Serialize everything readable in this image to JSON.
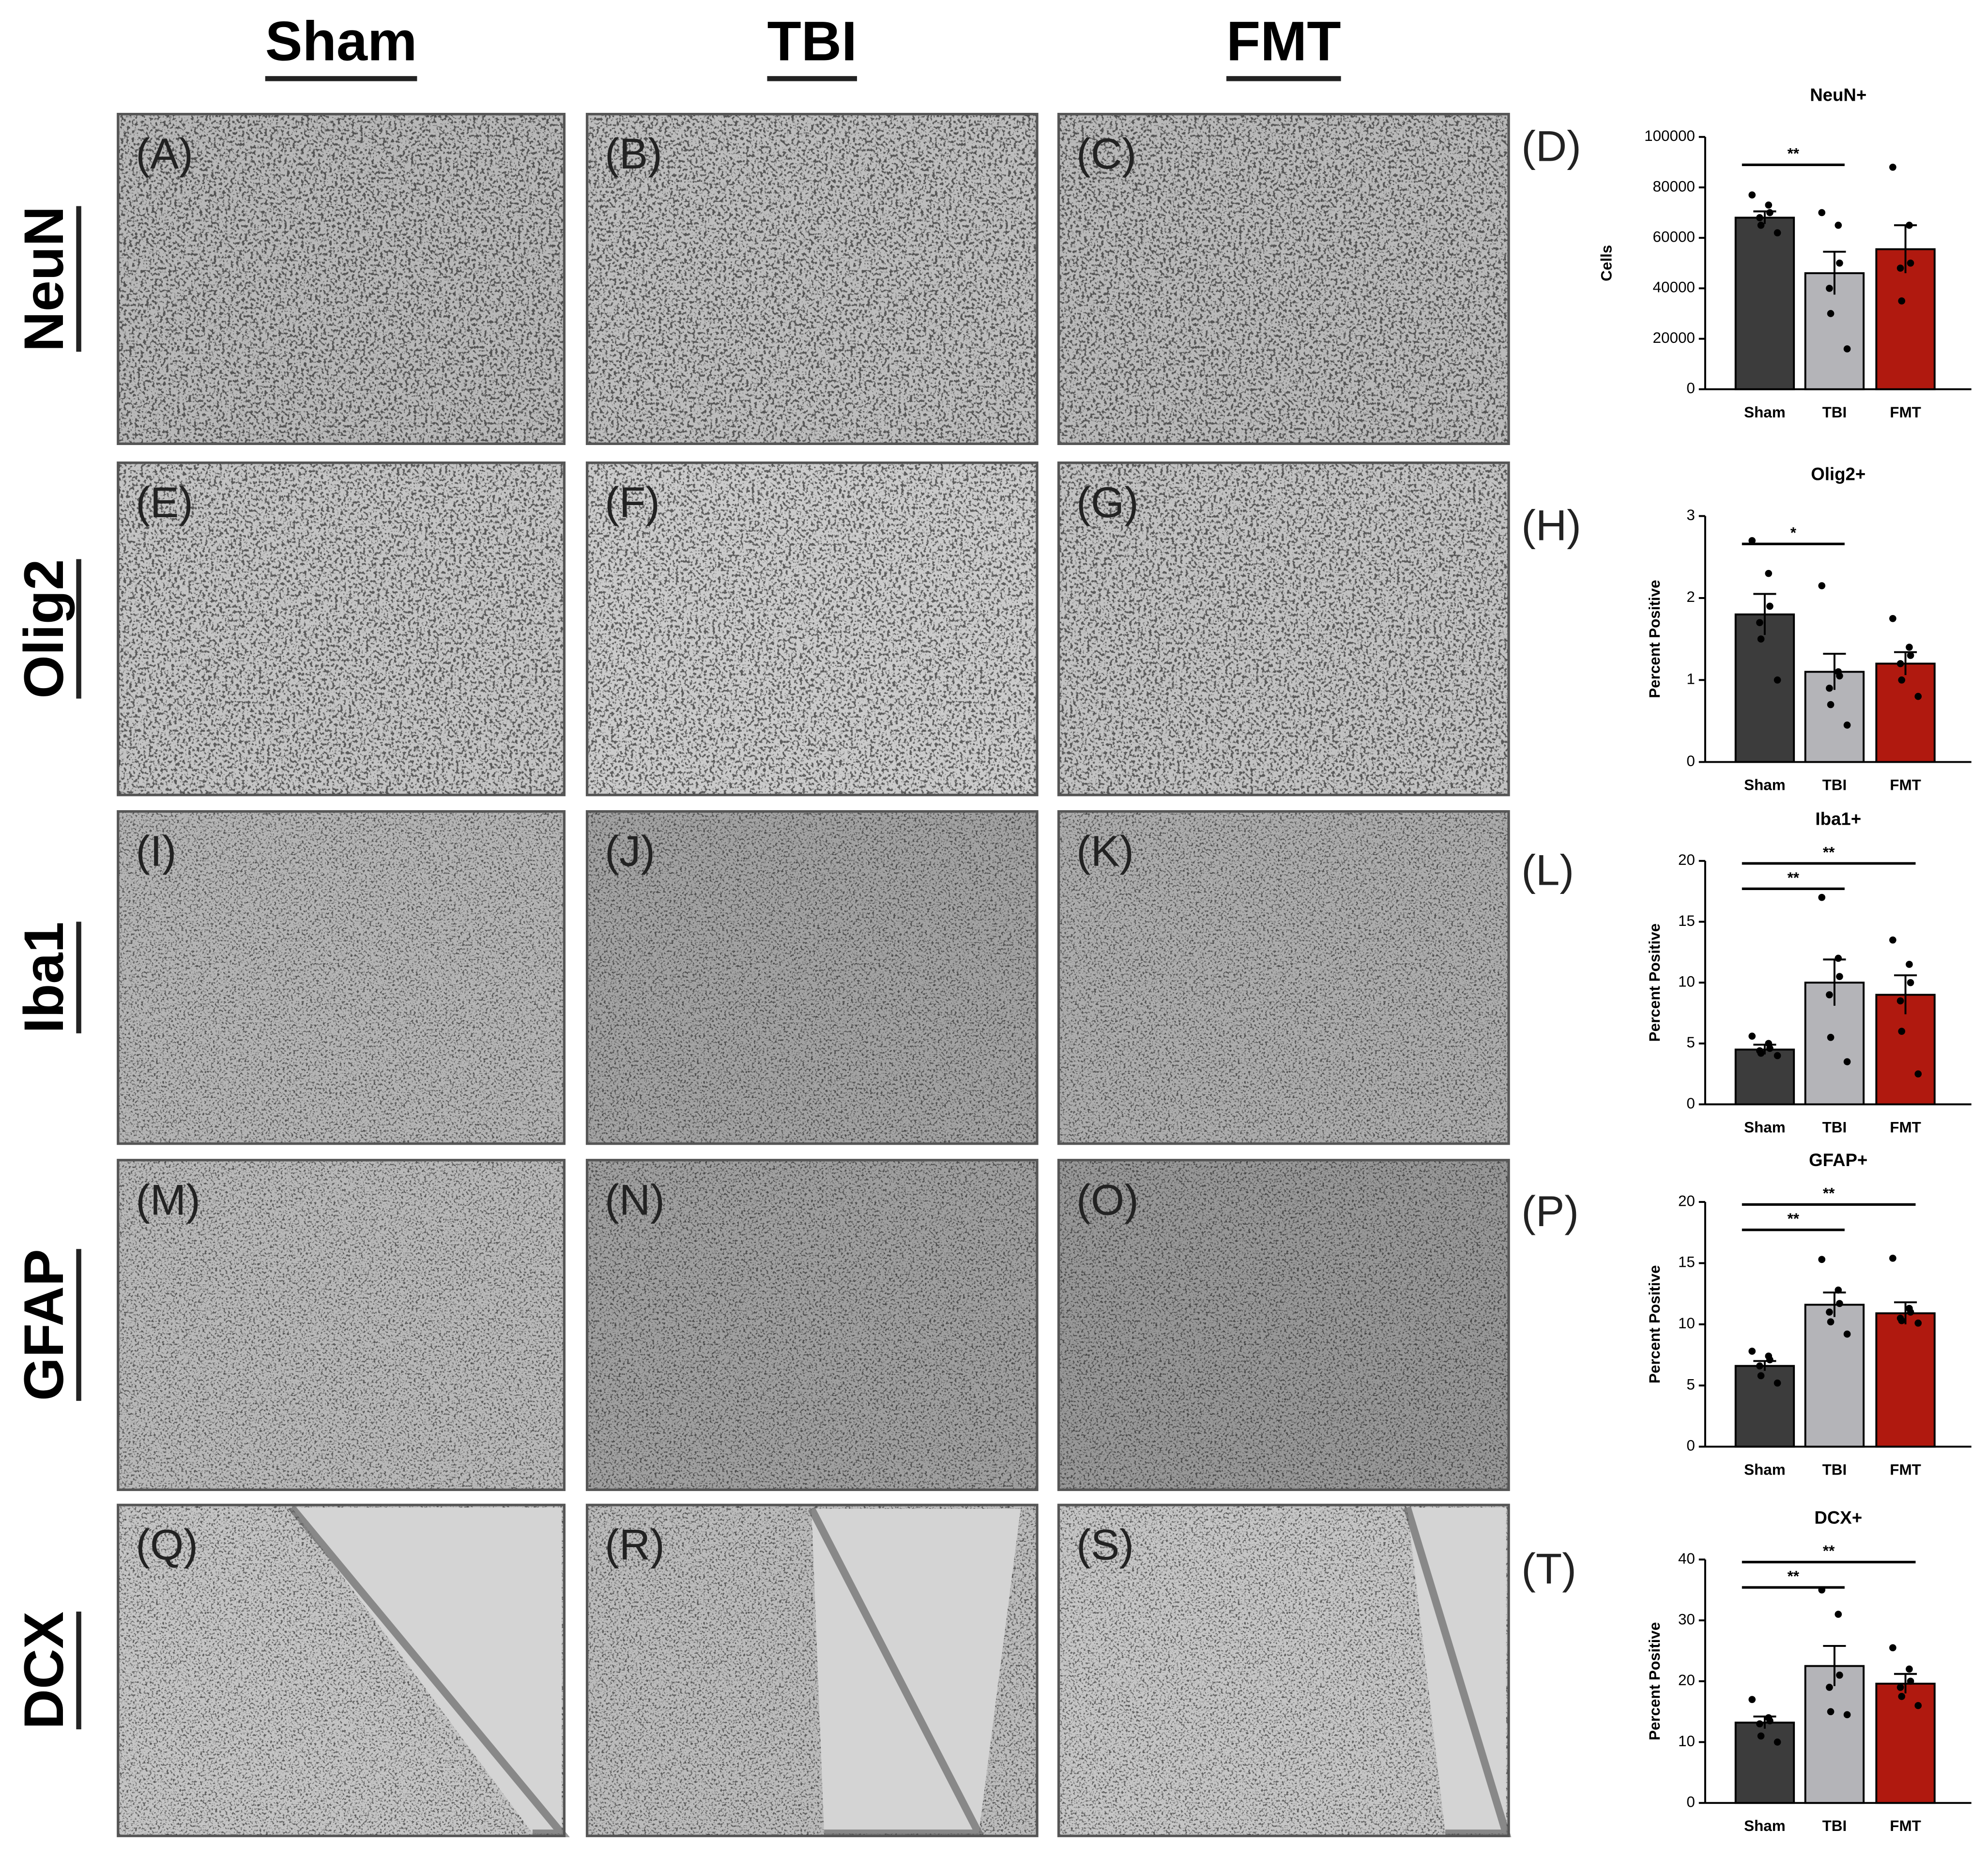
{
  "columns": [
    "Sham",
    "TBI",
    "FMT"
  ],
  "rows": [
    "NeuN",
    "Olig2",
    "Iba1",
    "GFAP",
    "DCX"
  ],
  "micrographs": [
    [
      "(A)",
      "(B)",
      "(C)"
    ],
    [
      "(E)",
      "(F)",
      "(G)"
    ],
    [
      "(I)",
      "(J)",
      "(K)"
    ],
    [
      "(M)",
      "(N)",
      "(O)"
    ],
    [
      "(Q)",
      "(R)",
      "(S)"
    ]
  ],
  "chart_data": [
    {
      "type": "bar",
      "panel_label": "(D)",
      "title": "NeuN+",
      "ylabel": "Cells",
      "categories": [
        "Sham",
        "TBI",
        "FMT"
      ],
      "colors": [
        "#3c3c3c",
        "#b4b4b8",
        "#b0190f"
      ],
      "values": [
        68000,
        46000,
        55500
      ],
      "errors": [
        2500,
        8500,
        9500
      ],
      "points": [
        [
          77000,
          73000,
          70000,
          68000,
          65000,
          62000
        ],
        [
          70000,
          65000,
          50000,
          40000,
          30000,
          16000
        ],
        [
          88000,
          65000,
          50000,
          48000,
          35000
        ]
      ],
      "ylim": [
        0,
        100000
      ],
      "yticks": [
        0,
        20000,
        40000,
        60000,
        80000,
        100000
      ],
      "comparisons": [
        {
          "groups": [
            "Sham",
            "TBI"
          ],
          "label": "**"
        }
      ]
    },
    {
      "type": "bar",
      "panel_label": "(H)",
      "title": "Olig2+",
      "ylabel": "Percent Positive",
      "categories": [
        "Sham",
        "TBI",
        "FMT"
      ],
      "colors": [
        "#3c3c3c",
        "#b4b4b8",
        "#b0190f"
      ],
      "values": [
        1.8,
        1.1,
        1.2
      ],
      "errors": [
        0.25,
        0.22,
        0.14
      ],
      "points": [
        [
          2.7,
          2.3,
          1.9,
          1.7,
          1.5,
          1.0
        ],
        [
          2.15,
          1.1,
          1.05,
          0.9,
          0.7,
          0.45
        ],
        [
          1.75,
          1.4,
          1.3,
          1.2,
          1.0,
          0.8
        ]
      ],
      "ylim": [
        0,
        3
      ],
      "yticks": [
        0,
        1,
        2,
        3
      ],
      "comparisons": [
        {
          "groups": [
            "Sham",
            "TBI"
          ],
          "label": "*"
        }
      ]
    },
    {
      "type": "bar",
      "panel_label": "(L)",
      "title": "Iba1+",
      "ylabel": "Percent Positive",
      "categories": [
        "Sham",
        "TBI",
        "FMT"
      ],
      "colors": [
        "#3c3c3c",
        "#b4b4b8",
        "#b0190f"
      ],
      "values": [
        4.5,
        10,
        9
      ],
      "errors": [
        0.4,
        1.9,
        1.6
      ],
      "points": [
        [
          5.6,
          5.0,
          4.6,
          4.4,
          4.2,
          4.0
        ],
        [
          17,
          12,
          10.5,
          9,
          5.5,
          3.5
        ],
        [
          13.5,
          11.5,
          10,
          8.5,
          6,
          2.5
        ]
      ],
      "ylim": [
        0,
        20
      ],
      "yticks": [
        0,
        5,
        10,
        15,
        20
      ],
      "comparisons": [
        {
          "groups": [
            "Sham",
            "TBI"
          ],
          "label": "**"
        },
        {
          "groups": [
            "Sham",
            "FMT"
          ],
          "label": "**"
        }
      ]
    },
    {
      "type": "bar",
      "panel_label": "(P)",
      "title": "GFAP+",
      "ylabel": "Percent Positive",
      "categories": [
        "Sham",
        "TBI",
        "FMT"
      ],
      "colors": [
        "#3c3c3c",
        "#b4b4b8",
        "#b0190f"
      ],
      "values": [
        6.6,
        11.6,
        10.9
      ],
      "errors": [
        0.4,
        1.0,
        0.9
      ],
      "points": [
        [
          7.8,
          7.4,
          7.1,
          6.6,
          5.8,
          5.2
        ],
        [
          15.3,
          12.8,
          11.7,
          11.0,
          10.2,
          9.2
        ],
        [
          15.4,
          11.3,
          11.0,
          10.5,
          10.3,
          10.1
        ]
      ],
      "ylim": [
        0,
        20
      ],
      "yticks": [
        0,
        5,
        10,
        15,
        20
      ],
      "comparisons": [
        {
          "groups": [
            "Sham",
            "TBI"
          ],
          "label": "**"
        },
        {
          "groups": [
            "Sham",
            "FMT"
          ],
          "label": "**"
        }
      ]
    },
    {
      "type": "bar",
      "panel_label": "(T)",
      "title": "DCX+",
      "ylabel": "Percent Positive",
      "categories": [
        "Sham",
        "TBI",
        "FMT"
      ],
      "colors": [
        "#3c3c3c",
        "#b4b4b8",
        "#b0190f"
      ],
      "values": [
        13.2,
        22.5,
        19.6
      ],
      "errors": [
        1.0,
        3.3,
        1.6
      ],
      "points": [
        [
          17,
          14,
          13.5,
          13,
          11,
          10
        ],
        [
          35,
          31,
          21,
          19,
          15,
          14.5
        ],
        [
          25.5,
          22,
          20,
          19,
          17.5,
          16
        ]
      ],
      "ylim": [
        0,
        40
      ],
      "yticks": [
        0,
        10,
        20,
        30,
        40
      ],
      "comparisons": [
        {
          "groups": [
            "Sham",
            "TBI"
          ],
          "label": "**"
        },
        {
          "groups": [
            "Sham",
            "FMT"
          ],
          "label": "**"
        }
      ]
    }
  ]
}
